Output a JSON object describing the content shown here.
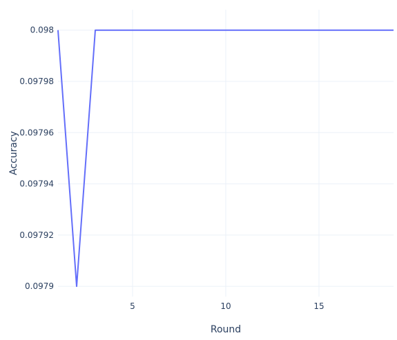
{
  "chart_data": {
    "type": "line",
    "xlabel": "Round",
    "ylabel": "Accuracy",
    "xlim": [
      1,
      19
    ],
    "ylim": [
      0.097896,
      0.098008
    ],
    "x_ticks": [
      5,
      10,
      15
    ],
    "x_tick_labels": [
      "5",
      "10",
      "15"
    ],
    "y_ticks": [
      0.0979,
      0.09792,
      0.09794,
      0.09796,
      0.09798,
      0.098
    ],
    "y_tick_labels": [
      "0.0979",
      "0.09792",
      "0.09794",
      "0.09796",
      "0.09798",
      "0.098"
    ],
    "grid": true,
    "series": [
      {
        "color": "#636efa",
        "x": [
          1,
          2,
          3,
          4,
          5,
          6,
          7,
          8,
          9,
          10,
          11,
          12,
          13,
          14,
          15,
          16,
          17,
          18,
          19
        ],
        "y": [
          0.098,
          0.0979,
          0.098,
          0.098,
          0.098,
          0.098,
          0.098,
          0.098,
          0.098,
          0.098,
          0.098,
          0.098,
          0.098,
          0.098,
          0.098,
          0.098,
          0.098,
          0.098,
          0.098
        ]
      }
    ]
  }
}
